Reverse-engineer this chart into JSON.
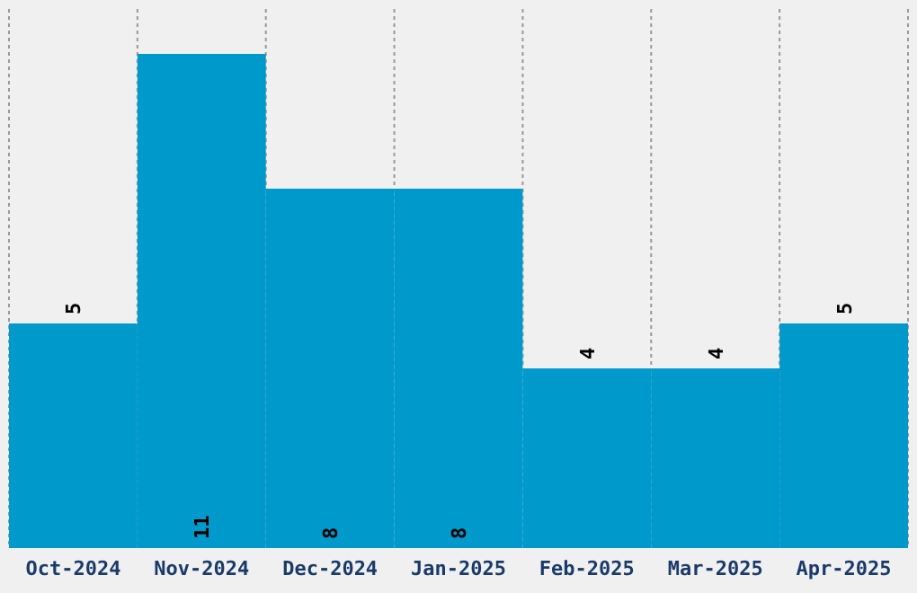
{
  "chart_data": {
    "type": "bar",
    "categories": [
      "Oct-2024",
      "Nov-2024",
      "Dec-2024",
      "Jan-2025",
      "Feb-2025",
      "Mar-2025",
      "Apr-2025"
    ],
    "values": [
      5,
      11,
      8,
      8,
      4,
      4,
      5
    ],
    "color": "#0099cc",
    "ylim": [
      0,
      12
    ],
    "tick_labels": "x",
    "grid": "x",
    "data_labels": true
  }
}
